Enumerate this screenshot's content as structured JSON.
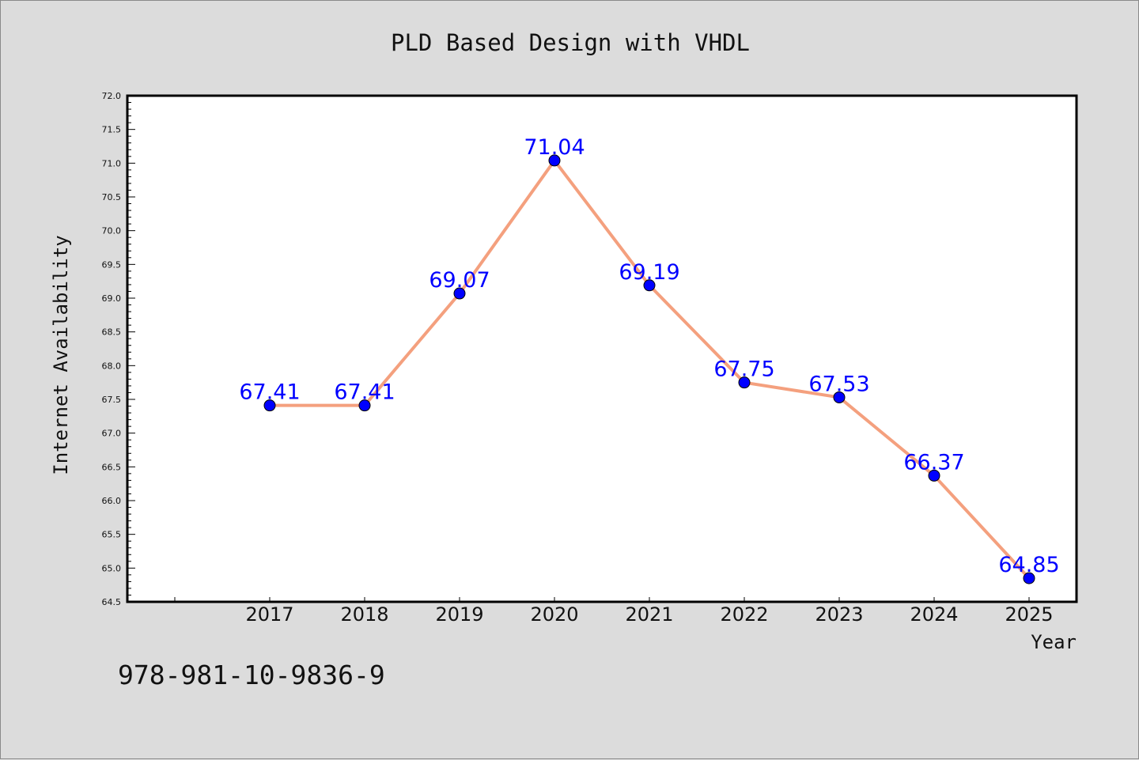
{
  "chart_data": {
    "type": "line",
    "title": "PLD Based Design with VHDL",
    "xlabel": "Year",
    "ylabel": "Internet Availability",
    "categories": [
      "2017",
      "2018",
      "2019",
      "2020",
      "2021",
      "2022",
      "2023",
      "2024",
      "2025"
    ],
    "series": [
      {
        "values": [
          67.41,
          67.41,
          69.07,
          71.04,
          69.19,
          67.75,
          67.53,
          66.37,
          64.85
        ]
      }
    ],
    "data_labels": [
      "67.41",
      "67.41",
      "69.07",
      "71.04",
      "69.19",
      "67.75",
      "67.53",
      "66.37",
      "64.85"
    ],
    "ylim": [
      64.5,
      72.0
    ],
    "yticks": [
      "64.5",
      "65.0",
      "65.5",
      "66.0",
      "66.5",
      "67.0",
      "67.5",
      "68.0",
      "68.5",
      "69.0",
      "69.5",
      "70.0",
      "70.5",
      "71.0",
      "71.5",
      "72.0"
    ],
    "grid": false,
    "legend": "none",
    "colors": {
      "background": "#dcdcdc",
      "plot_area": "#ffffff",
      "line": "#f4a07e",
      "marker": "#0000ff",
      "data_label": "#0000ff"
    }
  },
  "footer_text": "978-981-10-9836-9"
}
